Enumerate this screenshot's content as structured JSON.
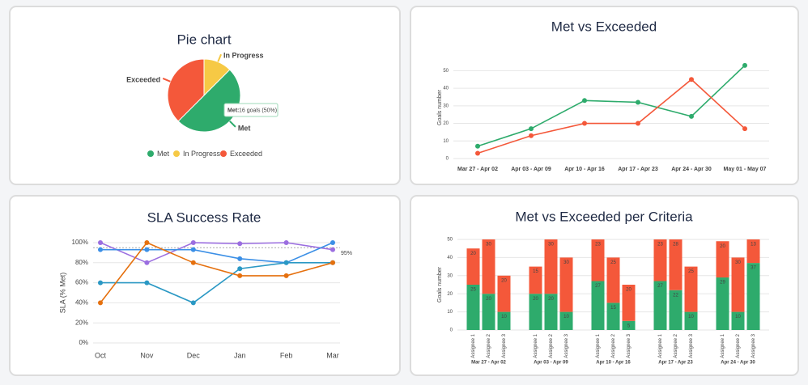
{
  "chart_data": [
    {
      "type": "pie",
      "title": "Pie chart",
      "categories": [
        "Met",
        "In Progress",
        "Exceeded"
      ],
      "values": [
        16,
        4,
        12
      ],
      "colors": [
        "#2eab6c",
        "#f6c945",
        "#f4583a"
      ],
      "tooltip": {
        "name": "Met:",
        "text": "16 goals (50%)"
      },
      "legend": "bottom"
    },
    {
      "type": "line",
      "title": "Met vs Exceeded",
      "y_label": "Goals number",
      "categories": [
        "Mar 27 - Apr 02",
        "Apr 03 - Apr 09",
        "Apr 10 - Apr 16",
        "Apr 17 - Apr 23",
        "Apr 24 - Apr 30",
        "May 01 - May 07"
      ],
      "series": [
        {
          "color": "#2eab6c",
          "values": [
            7,
            17,
            33,
            32,
            24,
            53
          ]
        },
        {
          "color": "#f4583a",
          "values": [
            3,
            13,
            20,
            20,
            45,
            17
          ]
        }
      ],
      "ylim": [
        0,
        58
      ],
      "yticks": [
        0,
        10,
        20,
        30,
        40,
        50
      ],
      "grid": true
    },
    {
      "type": "line",
      "title": "SLA Success Rate",
      "y_label": "SLA (% Met)",
      "categories": [
        "Oct",
        "Nov",
        "Dec",
        "Jan",
        "Feb",
        "Mar"
      ],
      "series": [
        {
          "color": "#9b6ee0",
          "values": [
            100,
            80,
            100,
            99,
            100,
            93
          ]
        },
        {
          "color": "#3b8fe6",
          "values": [
            93,
            93,
            93,
            84,
            80,
            100
          ]
        },
        {
          "color": "#2a98c4",
          "values": [
            60,
            60,
            40,
            74,
            80,
            80
          ]
        },
        {
          "color": "#e5700e",
          "values": [
            40,
            100,
            80,
            67,
            67,
            80
          ]
        }
      ],
      "ylim": [
        0,
        100
      ],
      "yticks": [
        {
          "value": 0,
          "label": "0%"
        },
        {
          "value": 20,
          "label": "20%"
        },
        {
          "value": 40,
          "label": "40%"
        },
        {
          "value": 60,
          "label": "60%"
        },
        {
          "value": 80,
          "label": "80%"
        },
        {
          "value": 100,
          "label": "100%"
        }
      ],
      "threshold": {
        "value": 95,
        "label": "95%"
      },
      "grid": true
    },
    {
      "type": "stacked_bar",
      "title": "Met vs Exceeded per Criteria",
      "y_label": "Goals number",
      "groups": [
        "Mar 27 - Apr 02",
        "Apr 03 - Apr 09",
        "Apr 10 - Apr 16",
        "Apr 17 - Apr 23",
        "Apr 24 - Apr 30"
      ],
      "categories": [
        "Assignee 1",
        "Assignee 2",
        "Assignee 3",
        "Assignee 1",
        "Assignee 2",
        "Assignee 3",
        "Assignee 1",
        "Assignee 2",
        "Assignee 3",
        "Assignee 1",
        "Assignee 2",
        "Assignee 3",
        "Assignee 1",
        "Assignee 2",
        "Assignee 3"
      ],
      "series": [
        {
          "color": "#2eab6c",
          "values": [
            25,
            20,
            10,
            20,
            20,
            10,
            27,
            15,
            5,
            27,
            22,
            10,
            29,
            10,
            37
          ]
        },
        {
          "color": "#f4583a",
          "values": [
            20,
            30,
            20,
            15,
            30,
            30,
            23,
            25,
            20,
            23,
            28,
            25,
            20,
            30,
            13
          ]
        }
      ],
      "ylim": [
        0,
        50
      ],
      "yticks": [
        0,
        10,
        20,
        30,
        40,
        50
      ],
      "grid": true
    }
  ]
}
